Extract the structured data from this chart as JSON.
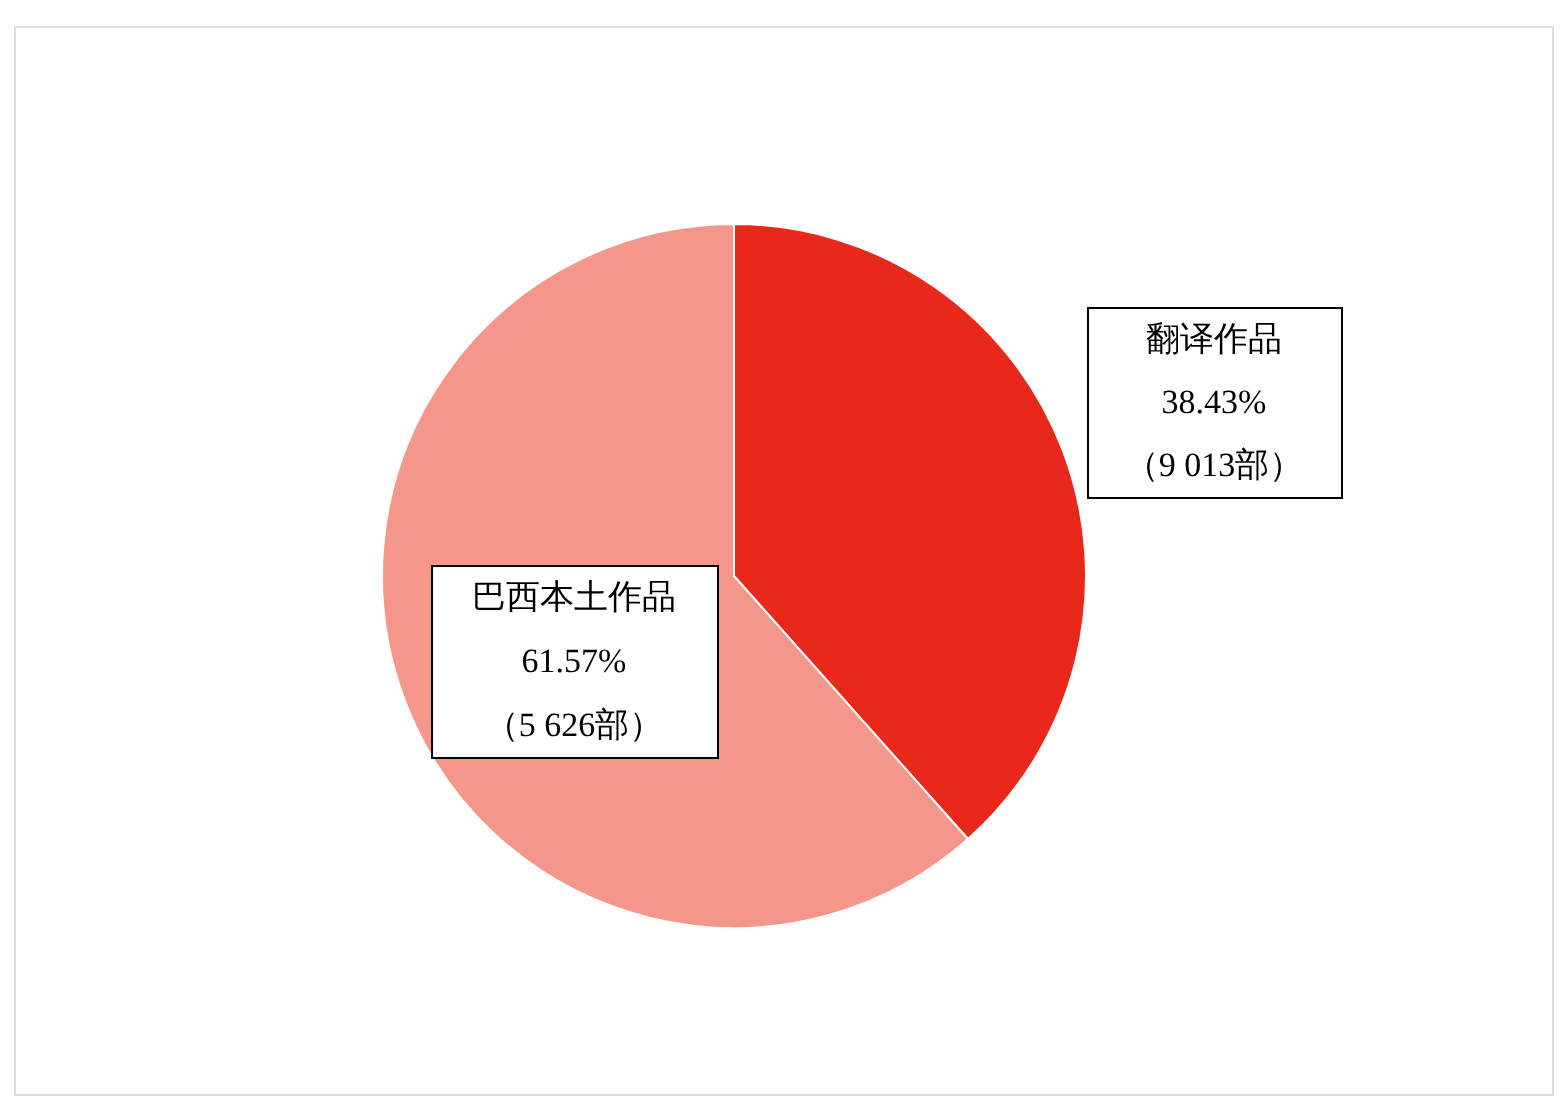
{
  "chart_data": {
    "type": "pie",
    "categories": [
      "翻译作品",
      "巴西本土作品"
    ],
    "values": [
      38.43,
      61.57
    ],
    "colors": [
      "#e8281a",
      "#f4968a"
    ],
    "value_labels": [
      "38.43%",
      "61.57%"
    ],
    "annotations": [
      "（9 013部）",
      "（5 626部）"
    ]
  }
}
